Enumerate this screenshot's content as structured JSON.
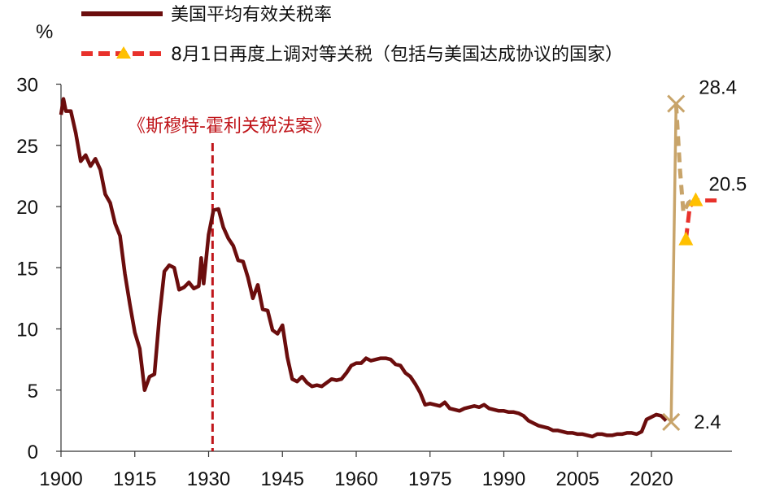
{
  "chart_data": {
    "type": "line",
    "ylabel": "%",
    "xlim": [
      1900,
      2030
    ],
    "ylim": [
      0,
      30
    ],
    "x_ticks": [
      "1900",
      "1915",
      "1930",
      "1945",
      "1960",
      "1975",
      "1990",
      "2005",
      "2020"
    ],
    "y_ticks": [
      "0",
      "5",
      "10",
      "15",
      "20",
      "25",
      "30"
    ],
    "grid": false,
    "legend_position": "top-left",
    "series": [
      {
        "name": "美国平均有效关税率",
        "color": "#6b0d0d",
        "style": "solid",
        "points": [
          [
            1900,
            27.5
          ],
          [
            1900.5,
            28.8
          ],
          [
            1901,
            27.8
          ],
          [
            1902,
            27.8
          ],
          [
            1903,
            26.0
          ],
          [
            1904,
            23.7
          ],
          [
            1905,
            24.2
          ],
          [
            1906,
            23.3
          ],
          [
            1907,
            23.9
          ],
          [
            1908,
            23.0
          ],
          [
            1909,
            21.0
          ],
          [
            1910,
            20.3
          ],
          [
            1911,
            18.6
          ],
          [
            1912,
            17.6
          ],
          [
            1913,
            14.5
          ],
          [
            1914,
            12.0
          ],
          [
            1915,
            9.7
          ],
          [
            1916,
            8.4
          ],
          [
            1917,
            5.0
          ],
          [
            1918,
            6.1
          ],
          [
            1919,
            6.3
          ],
          [
            1920,
            11.0
          ],
          [
            1921,
            14.7
          ],
          [
            1922,
            15.2
          ],
          [
            1923,
            15.0
          ],
          [
            1924,
            13.2
          ],
          [
            1925,
            13.4
          ],
          [
            1926,
            13.8
          ],
          [
            1927,
            13.3
          ],
          [
            1928,
            13.5
          ],
          [
            1928.5,
            15.8
          ],
          [
            1929,
            13.7
          ],
          [
            1930,
            17.7
          ],
          [
            1931,
            19.7
          ],
          [
            1932,
            19.8
          ],
          [
            1933,
            18.3
          ],
          [
            1934,
            17.4
          ],
          [
            1935,
            16.8
          ],
          [
            1936,
            15.6
          ],
          [
            1937,
            15.5
          ],
          [
            1938,
            14.2
          ],
          [
            1939,
            12.5
          ],
          [
            1940,
            13.6
          ],
          [
            1941,
            11.6
          ],
          [
            1942,
            11.5
          ],
          [
            1943,
            9.9
          ],
          [
            1944,
            9.6
          ],
          [
            1945,
            10.3
          ],
          [
            1946,
            7.7
          ],
          [
            1947,
            5.9
          ],
          [
            1948,
            5.7
          ],
          [
            1949,
            6.1
          ],
          [
            1950,
            5.6
          ],
          [
            1951,
            5.3
          ],
          [
            1952,
            5.4
          ],
          [
            1953,
            5.3
          ],
          [
            1954,
            5.6
          ],
          [
            1955,
            5.9
          ],
          [
            1956,
            5.8
          ],
          [
            1957,
            5.9
          ],
          [
            1958,
            6.4
          ],
          [
            1959,
            7.0
          ],
          [
            1960,
            7.2
          ],
          [
            1961,
            7.2
          ],
          [
            1962,
            7.6
          ],
          [
            1963,
            7.4
          ],
          [
            1964,
            7.5
          ],
          [
            1965,
            7.6
          ],
          [
            1966,
            7.6
          ],
          [
            1967,
            7.5
          ],
          [
            1968,
            7.1
          ],
          [
            1969,
            7.0
          ],
          [
            1970,
            6.4
          ],
          [
            1971,
            6.1
          ],
          [
            1972,
            5.5
          ],
          [
            1973,
            4.8
          ],
          [
            1974,
            3.8
          ],
          [
            1975,
            3.9
          ],
          [
            1976,
            3.8
          ],
          [
            1977,
            3.7
          ],
          [
            1978,
            4.0
          ],
          [
            1979,
            3.5
          ],
          [
            1980,
            3.4
          ],
          [
            1981,
            3.3
          ],
          [
            1982,
            3.5
          ],
          [
            1983,
            3.6
          ],
          [
            1984,
            3.7
          ],
          [
            1985,
            3.6
          ],
          [
            1986,
            3.8
          ],
          [
            1987,
            3.5
          ],
          [
            1988,
            3.4
          ],
          [
            1989,
            3.3
          ],
          [
            1990,
            3.3
          ],
          [
            1991,
            3.2
          ],
          [
            1992,
            3.2
          ],
          [
            1993,
            3.1
          ],
          [
            1994,
            2.9
          ],
          [
            1995,
            2.5
          ],
          [
            1996,
            2.3
          ],
          [
            1997,
            2.1
          ],
          [
            1998,
            2.0
          ],
          [
            1999,
            1.9
          ],
          [
            2000,
            1.7
          ],
          [
            2001,
            1.7
          ],
          [
            2002,
            1.6
          ],
          [
            2003,
            1.5
          ],
          [
            2004,
            1.5
          ],
          [
            2005,
            1.4
          ],
          [
            2006,
            1.4
          ],
          [
            2007,
            1.3
          ],
          [
            2008,
            1.2
          ],
          [
            2009,
            1.4
          ],
          [
            2010,
            1.4
          ],
          [
            2011,
            1.3
          ],
          [
            2012,
            1.3
          ],
          [
            2013,
            1.4
          ],
          [
            2014,
            1.4
          ],
          [
            2015,
            1.5
          ],
          [
            2016,
            1.5
          ],
          [
            2017,
            1.4
          ],
          [
            2018,
            1.6
          ],
          [
            2019,
            2.6
          ],
          [
            2020,
            2.8
          ],
          [
            2021,
            3.0
          ],
          [
            2022,
            2.9
          ],
          [
            2023,
            2.5
          ]
        ]
      },
      {
        "name": "",
        "color": "#c8a46a",
        "style": "solid",
        "points": [
          [
            2024,
            2.4
          ],
          [
            2025,
            28.4
          ]
        ]
      },
      {
        "name": "",
        "color": "#c8a46a",
        "style": "dashed",
        "points": [
          [
            2025,
            28.4
          ],
          [
            2025.8,
            23.0
          ],
          [
            2026.5,
            19.5
          ],
          [
            2027.5,
            20.3
          ],
          [
            2028.5,
            20.6
          ]
        ]
      },
      {
        "name": "8月1日再度上调对等关税（包括与美国达成协议的国家）",
        "color": "#e8312b",
        "style": "dashed",
        "marker": "triangle",
        "marker_color": "#ffc000",
        "points": [
          [
            2027,
            17.3
          ],
          [
            2027.8,
            20.0
          ],
          [
            2029,
            20.5
          ],
          [
            2030,
            20.5
          ],
          [
            2034,
            20.5
          ]
        ]
      }
    ],
    "extreme_points": [
      {
        "x": 2024,
        "y": 2.4,
        "label": "2.4"
      },
      {
        "x": 2025,
        "y": 28.4,
        "label": "28.4"
      }
    ],
    "end_label": {
      "x": 2030,
      "y": 20.5,
      "label": "20.5"
    },
    "annotations": [
      {
        "text": "《斯穆特-霍利关税法案》",
        "x": 1930.8,
        "color": "#c0161b"
      }
    ]
  }
}
